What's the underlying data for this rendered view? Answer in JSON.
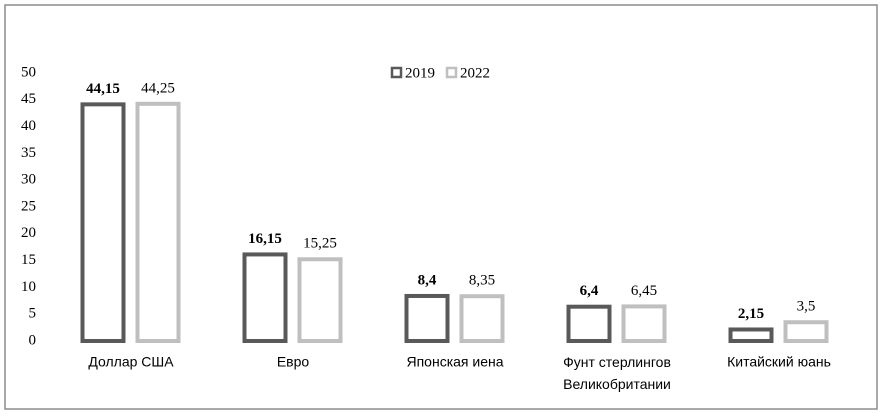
{
  "chart_data": {
    "type": "bar",
    "categories": [
      "Доллар США",
      "Евро",
      "Японская иена",
      "Фунт стерлингов Великобритании",
      "Китайский юань"
    ],
    "series": [
      {
        "name": "2019",
        "color": "#595959",
        "values": [
          44.15,
          16.15,
          8.4,
          6.4,
          2.15
        ],
        "value_labels": [
          "44,15",
          "16,15",
          "8,4",
          "6,4",
          "2,15"
        ]
      },
      {
        "name": "2022",
        "color": "#bfbfbf",
        "values": [
          44.25,
          15.25,
          8.35,
          6.45,
          3.5
        ],
        "value_labels": [
          "44,25",
          "15,25",
          "8,35",
          "6,45",
          "3,5"
        ]
      }
    ],
    "ylim": [
      0,
      50
    ],
    "yticks": [
      0,
      5,
      10,
      15,
      20,
      25,
      30,
      35,
      40,
      45,
      50
    ],
    "grid": false,
    "legend": "top"
  }
}
